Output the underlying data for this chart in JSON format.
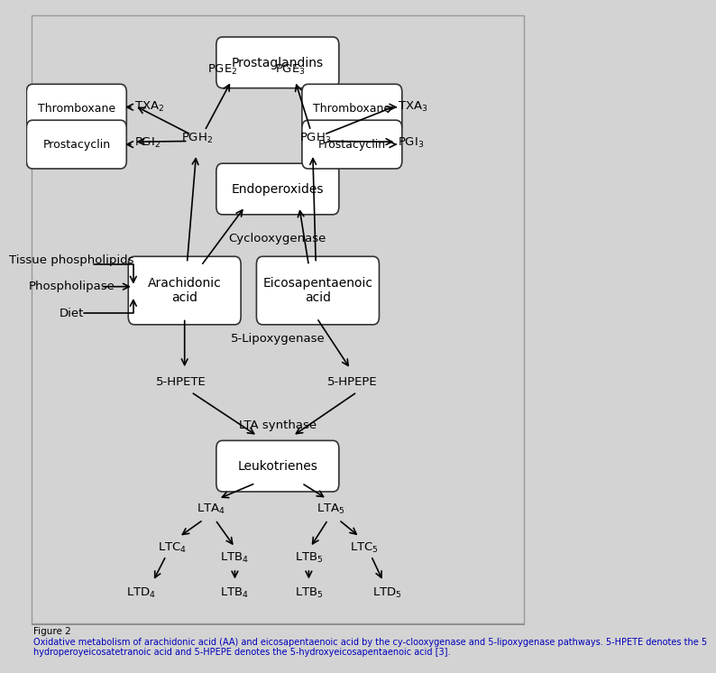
{
  "bg_color": "#d3d3d3",
  "box_color": "#ffffff",
  "box_edge": "#333333",
  "text_color": "#000000",
  "figure_caption": "Figure 2",
  "caption_line1": "Oxidative metabolism of arachidonic acid (AA) and eicosapentaenoic acid by the cy-clooxygenase and 5-lipoxygenase pathways. 5-HPETE denotes the 5",
  "caption_line2": "hydroperoyeicosatetranoic acid and 5-HPEPE denotes the 5-hydroxyeicosapentaenoic acid [3]."
}
